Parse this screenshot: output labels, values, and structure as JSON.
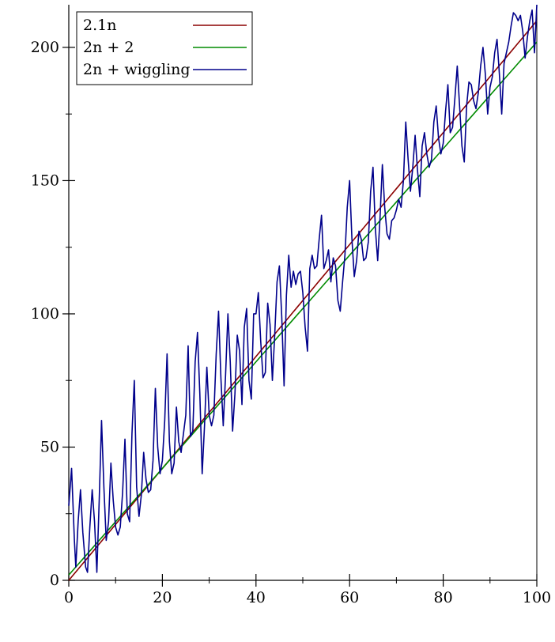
{
  "chart_data": {
    "type": "line",
    "title": "",
    "xlabel": "",
    "ylabel": "",
    "xlim": [
      0,
      100
    ],
    "ylim": [
      0,
      216
    ],
    "x_ticks": [
      0,
      20,
      40,
      60,
      80,
      100
    ],
    "x_minor_ticks": [
      10,
      30,
      50,
      70,
      90
    ],
    "y_ticks": [
      0,
      50,
      100,
      150,
      200
    ],
    "y_minor_ticks": [
      25,
      75,
      125,
      175
    ],
    "grid": false,
    "legend_position": "top-left",
    "series": [
      {
        "name": "2.1n",
        "color": "#8b0000",
        "kind": "function",
        "formula": "2.1n"
      },
      {
        "name": "2n + 2",
        "color": "#008b00",
        "kind": "function",
        "formula": "2n + 2"
      },
      {
        "name": "2n + wiggling",
        "color": "#00008b",
        "kind": "sampled",
        "x": [
          0,
          0.6,
          1.2,
          1.5,
          2,
          2.5,
          3,
          3.6,
          4,
          4.5,
          5,
          5.5,
          6,
          6.5,
          7,
          7.5,
          8,
          8.5,
          9,
          9.5,
          10,
          10.5,
          11,
          11.5,
          12,
          12.5,
          13,
          13.5,
          14,
          14.5,
          15,
          15.5,
          16,
          16.5,
          17,
          17.5,
          18,
          18.5,
          19,
          19.5,
          20,
          20.5,
          21,
          21.5,
          22,
          22.5,
          23,
          23.5,
          24,
          24.5,
          25,
          25.5,
          26,
          26.5,
          27,
          27.5,
          28,
          28.5,
          29,
          29.5,
          30,
          30.5,
          31,
          31.5,
          32,
          32.5,
          33,
          33.5,
          34,
          34.5,
          35,
          35.5,
          36,
          36.5,
          37,
          37.5,
          38,
          38.5,
          39,
          39.5,
          40,
          40.5,
          41,
          41.5,
          42,
          42.5,
          43,
          43.5,
          44,
          44.5,
          45,
          45.5,
          46,
          46.5,
          47,
          47.5,
          48,
          48.5,
          49,
          49.5,
          50,
          50.5,
          51,
          51.5,
          52,
          52.5,
          53,
          53.5,
          54,
          54.5,
          55,
          55.5,
          56,
          56.5,
          57,
          57.5,
          58,
          58.5,
          59,
          59.5,
          60,
          60.5,
          61,
          61.5,
          62,
          62.5,
          63,
          63.5,
          64,
          64.5,
          65,
          65.5,
          66,
          66.5,
          67,
          67.5,
          68,
          68.5,
          69,
          69.5,
          70,
          70.5,
          71,
          71.5,
          72,
          72.5,
          73,
          73.5,
          74,
          74.5,
          75,
          75.5,
          76,
          76.5,
          77,
          77.5,
          78,
          78.5,
          79,
          79.5,
          80,
          80.5,
          81,
          81.5,
          82,
          82.5,
          83,
          83.5,
          84,
          84.5,
          85,
          85.5,
          86,
          86.5,
          87,
          87.5,
          88,
          88.5,
          89,
          89.5,
          90,
          90.5,
          91,
          91.5,
          92,
          92.5,
          93,
          93.5,
          94,
          94.5,
          95,
          95.5,
          96,
          96.5,
          97,
          97.5,
          98,
          98.5,
          99,
          99.5,
          100
        ],
        "y": [
          28,
          42,
          15,
          5,
          22,
          34,
          18,
          5,
          3,
          20,
          34,
          22,
          3,
          30,
          60,
          35,
          15,
          22,
          44,
          30,
          20,
          17,
          20,
          33,
          53,
          25,
          22,
          55,
          75,
          35,
          24,
          32,
          48,
          38,
          33,
          34,
          45,
          72,
          50,
          40,
          45,
          60,
          85,
          52,
          40,
          44,
          65,
          52,
          48,
          55,
          62,
          88,
          54,
          56,
          82,
          93,
          70,
          40,
          58,
          80,
          62,
          58,
          62,
          85,
          101,
          76,
          58,
          77,
          100,
          82,
          56,
          70,
          92,
          86,
          66,
          95,
          102,
          75,
          68,
          100,
          100,
          108,
          90,
          76,
          78,
          104,
          96,
          75,
          92,
          112,
          118,
          99,
          73,
          107,
          122,
          110,
          116,
          111,
          115,
          116,
          108,
          95,
          86,
          117,
          122,
          117,
          118,
          128,
          137,
          117,
          120,
          124,
          112,
          121,
          118,
          105,
          101,
          112,
          122,
          140,
          150,
          128,
          114,
          120,
          131,
          128,
          120,
          121,
          127,
          146,
          155,
          132,
          120,
          136,
          156,
          140,
          130,
          128,
          135,
          136,
          139,
          143,
          140,
          150,
          172,
          158,
          146,
          155,
          167,
          154,
          144,
          163,
          168,
          160,
          155,
          158,
          172,
          178,
          166,
          160,
          164,
          176,
          186,
          168,
          170,
          181,
          193,
          178,
          163,
          157,
          178,
          187,
          186,
          180,
          177,
          183,
          193,
          200,
          190,
          175,
          185,
          189,
          198,
          203,
          190,
          175,
          194,
          198,
          202,
          208,
          213,
          212,
          210,
          212,
          206,
          196,
          204,
          210,
          214,
          198,
          216
        ]
      }
    ]
  }
}
